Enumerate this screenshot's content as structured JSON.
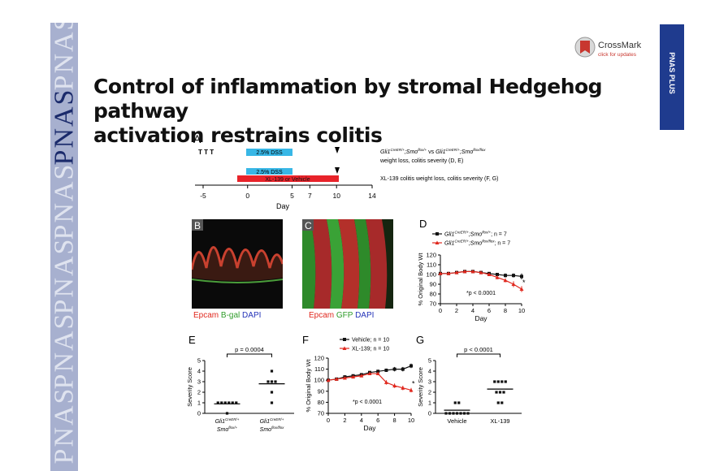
{
  "header": {
    "side_tab_right": "PNAS PLUS",
    "watermark": "PNAS",
    "crossmark": {
      "name": "CrossMark",
      "sub": "click for updates"
    },
    "title_line1": "Control of inflammation by stromal Hedgehog pathway",
    "title_line2": "activation restrains colitis"
  },
  "panels": {
    "A": {
      "label": "A",
      "marker_text": "T T T",
      "dss_label": "2.5% DSS",
      "drug_label": "XL-139 or Vehicle",
      "row1_text": "vs",
      "row1_geno1": "Gli1",
      "row1_sup1": "CreER/+",
      "row1_mid1": ";Smo",
      "row1_sup2": "flox/+",
      "row1_geno2": "Gli1",
      "row1_sup3": "CreER/+",
      "row1_mid2": ";Smo",
      "row1_sup4": "flox/flox",
      "row1_line2": "weight loss, colitis severity (D, E)",
      "row2_text": "XL-139 colitis weight loss, colitis severity (F, G)",
      "axis_ticks": [
        "-5",
        "0",
        "5",
        "7",
        "10",
        "14"
      ],
      "axis_label": "Day"
    },
    "B": {
      "label": "B",
      "legend": [
        {
          "text": "Epcam",
          "color": "#e0281e"
        },
        {
          "text": "B-gal",
          "color": "#2f9c2a"
        },
        {
          "text": "DAPI",
          "color": "#2433b8"
        }
      ]
    },
    "C": {
      "label": "C",
      "legend": [
        {
          "text": "Epcam",
          "color": "#e0281e"
        },
        {
          "text": "GFP",
          "color": "#2f9c2a"
        },
        {
          "text": "DAPI",
          "color": "#2433b8"
        }
      ]
    },
    "D": {
      "label": "D",
      "pvalue": "*p < 0.0001",
      "star": "*"
    },
    "E": {
      "label": "E",
      "pvalue": "p = 0.0004"
    },
    "F": {
      "label": "F",
      "pvalue": "*p < 0.0001",
      "star": "*"
    },
    "G": {
      "label": "G",
      "pvalue": "p < 0.0001"
    }
  },
  "chart_data": [
    {
      "panel": "D",
      "type": "line",
      "xlabel": "Day",
      "ylabel": "% Original Body Wt",
      "xlim": [
        0,
        10
      ],
      "ylim": [
        70,
        120
      ],
      "xticks": [
        0,
        2,
        4,
        6,
        8,
        10
      ],
      "yticks": [
        70,
        80,
        90,
        100,
        110,
        120
      ],
      "x": [
        0,
        1,
        2,
        3,
        4,
        5,
        6,
        7,
        8,
        9,
        10
      ],
      "series": [
        {
          "name": "Gli1CreER/+;Smoflox/+; n = 7",
          "legend_parts": [
            "Gli1",
            "CreER/+",
            ";Smo",
            "flox/+",
            "; n = 7"
          ],
          "color": "#111111",
          "marker": "square",
          "values": [
            101,
            101,
            102,
            103,
            103,
            102,
            101,
            100,
            99,
            99,
            98
          ],
          "errors": [
            1,
            1,
            1,
            1,
            1,
            1,
            1.5,
            1.5,
            2,
            2,
            3
          ]
        },
        {
          "name": "Gli1CreER/+;Smoflox/flox; n = 7",
          "legend_parts": [
            "Gli1",
            "CreER/+",
            ";Smo",
            "flox/flox",
            "; n = 7"
          ],
          "color": "#e0281e",
          "marker": "triangle",
          "values": [
            101,
            101,
            102,
            103,
            103,
            102,
            100,
            97,
            94,
            90,
            85
          ],
          "errors": [
            1,
            1,
            1,
            1,
            1,
            1,
            1.5,
            2,
            2,
            3,
            3
          ]
        }
      ]
    },
    {
      "panel": "E",
      "type": "scatter",
      "ylabel": "Severity Score",
      "ylim": [
        0,
        5
      ],
      "yticks": [
        0,
        1,
        2,
        3,
        4,
        5
      ],
      "categories": [
        {
          "parts": [
            "Gli1",
            "CreER/+",
            "",
            "Smo",
            "flox/+",
            ""
          ],
          "values": [
            1,
            1,
            1,
            1,
            1,
            1,
            0
          ],
          "mean": 0.9
        },
        {
          "parts": [
            "Gli1",
            "CreER/+",
            "",
            "Smo",
            "flox/flox",
            ""
          ],
          "values": [
            4,
            3,
            3,
            3,
            2,
            1
          ],
          "mean": 2.8
        }
      ]
    },
    {
      "panel": "F",
      "type": "line",
      "xlabel": "Day",
      "ylabel": "% Original Body Wt",
      "xlim": [
        0,
        10
      ],
      "ylim": [
        70,
        120
      ],
      "xticks": [
        0,
        2,
        4,
        6,
        8,
        10
      ],
      "yticks": [
        70,
        80,
        90,
        100,
        110,
        120
      ],
      "x": [
        0,
        1,
        2,
        3,
        4,
        5,
        6,
        7,
        8,
        9,
        10
      ],
      "series": [
        {
          "name": "Vehicle; n = 10",
          "color": "#111111",
          "marker": "square",
          "values": [
            100,
            101,
            103,
            104,
            105,
            107,
            108,
            109,
            110,
            110,
            113
          ],
          "errors": [
            1,
            1,
            1,
            1,
            1,
            1,
            1.5,
            1.5,
            2,
            2,
            2
          ]
        },
        {
          "name": "XL-139; n = 10",
          "color": "#e0281e",
          "marker": "triangle",
          "values": [
            100,
            101,
            102,
            103,
            104,
            106,
            106,
            98,
            95,
            93,
            91
          ],
          "errors": [
            1,
            1,
            1,
            1,
            1,
            1,
            1.5,
            2,
            2,
            2,
            2
          ]
        }
      ]
    },
    {
      "panel": "G",
      "type": "scatter",
      "ylabel": "Severity Score",
      "ylim": [
        0,
        5
      ],
      "yticks": [
        0,
        1,
        2,
        3,
        4,
        5
      ],
      "categories": [
        {
          "name": "Vehicle",
          "values": [
            1,
            1,
            0,
            0,
            0,
            0,
            0,
            0,
            0
          ],
          "mean": 0.3
        },
        {
          "name": "XL-139",
          "values": [
            3,
            3,
            3,
            3,
            2,
            2,
            2,
            1,
            1
          ],
          "mean": 2.3
        }
      ]
    }
  ]
}
